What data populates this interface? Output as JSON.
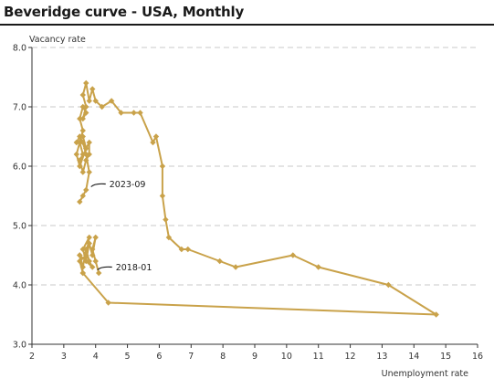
{
  "header": {
    "title": "Beveridge curve - USA, Monthly"
  },
  "chart_data": {
    "type": "scatter",
    "title": "Beveridge curve - USA, Monthly",
    "ylabel": "Vacancy rate",
    "xlabel": "Unemployment rate",
    "xlim": [
      2,
      16
    ],
    "ylim": [
      3.0,
      8.0
    ],
    "x_ticks": [
      2,
      3,
      4,
      5,
      6,
      7,
      8,
      9,
      10,
      11,
      12,
      13,
      14,
      15,
      16
    ],
    "y_ticks": [
      3.0,
      4.0,
      5.0,
      6.0,
      7.0,
      8.0
    ],
    "y_tick_labels": [
      "3.0",
      "4.0",
      "5.0",
      "6.0",
      "7.0",
      "8.0"
    ],
    "grid": "horizontal dashed",
    "color": "#c9a24a",
    "series": [
      {
        "values": [
          [
            4.1,
            4.2
          ],
          [
            4.0,
            4.4
          ],
          [
            3.9,
            4.6
          ],
          [
            4.0,
            4.8
          ],
          [
            3.9,
            4.5
          ],
          [
            3.8,
            4.7
          ],
          [
            3.7,
            4.4
          ],
          [
            3.6,
            4.6
          ],
          [
            3.8,
            4.8
          ],
          [
            3.7,
            4.5
          ],
          [
            3.5,
            4.4
          ],
          [
            3.6,
            4.2
          ],
          [
            3.5,
            4.5
          ],
          [
            3.6,
            4.3
          ],
          [
            3.7,
            4.6
          ],
          [
            3.8,
            4.4
          ],
          [
            3.9,
            4.3
          ],
          [
            3.5,
            4.5
          ],
          [
            3.6,
            4.2
          ],
          [
            4.4,
            3.7
          ],
          [
            14.7,
            3.5
          ],
          [
            13.2,
            4.0
          ],
          [
            11.0,
            4.3
          ],
          [
            10.2,
            4.5
          ],
          [
            8.4,
            4.3
          ],
          [
            7.9,
            4.4
          ],
          [
            6.9,
            4.6
          ],
          [
            6.7,
            4.6
          ],
          [
            6.3,
            4.8
          ],
          [
            6.2,
            5.1
          ],
          [
            6.1,
            5.5
          ],
          [
            6.1,
            6.0
          ],
          [
            5.9,
            6.5
          ],
          [
            5.8,
            6.4
          ],
          [
            5.4,
            6.9
          ],
          [
            5.2,
            6.9
          ],
          [
            4.8,
            6.9
          ],
          [
            4.5,
            7.1
          ],
          [
            4.2,
            7.0
          ],
          [
            4.0,
            7.1
          ],
          [
            3.9,
            7.3
          ],
          [
            3.8,
            7.1
          ],
          [
            3.7,
            7.4
          ],
          [
            3.6,
            7.2
          ],
          [
            3.7,
            7.0
          ],
          [
            3.6,
            6.8
          ],
          [
            3.7,
            6.9
          ],
          [
            3.6,
            7.0
          ],
          [
            3.5,
            6.8
          ],
          [
            3.6,
            6.6
          ],
          [
            3.5,
            6.4
          ],
          [
            3.6,
            6.2
          ],
          [
            3.5,
            6.1
          ],
          [
            3.6,
            5.9
          ],
          [
            3.7,
            6.1
          ],
          [
            3.8,
            6.2
          ],
          [
            3.8,
            6.4
          ],
          [
            3.7,
            6.3
          ],
          [
            3.6,
            6.5
          ],
          [
            3.7,
            6.3
          ],
          [
            3.5,
            6.0
          ],
          [
            3.4,
            6.2
          ],
          [
            3.5,
            6.4
          ],
          [
            3.4,
            6.4
          ],
          [
            3.5,
            6.5
          ],
          [
            3.6,
            6.4
          ],
          [
            3.7,
            6.2
          ],
          [
            3.8,
            5.9
          ],
          [
            3.7,
            5.6
          ],
          [
            3.6,
            5.5
          ],
          [
            3.5,
            5.4
          ]
        ]
      }
    ],
    "annotations": [
      {
        "text": "2023-09",
        "point": [
          3.8,
          5.7
        ]
      },
      {
        "text": "2018-01",
        "point": [
          4.0,
          4.3
        ]
      }
    ]
  }
}
